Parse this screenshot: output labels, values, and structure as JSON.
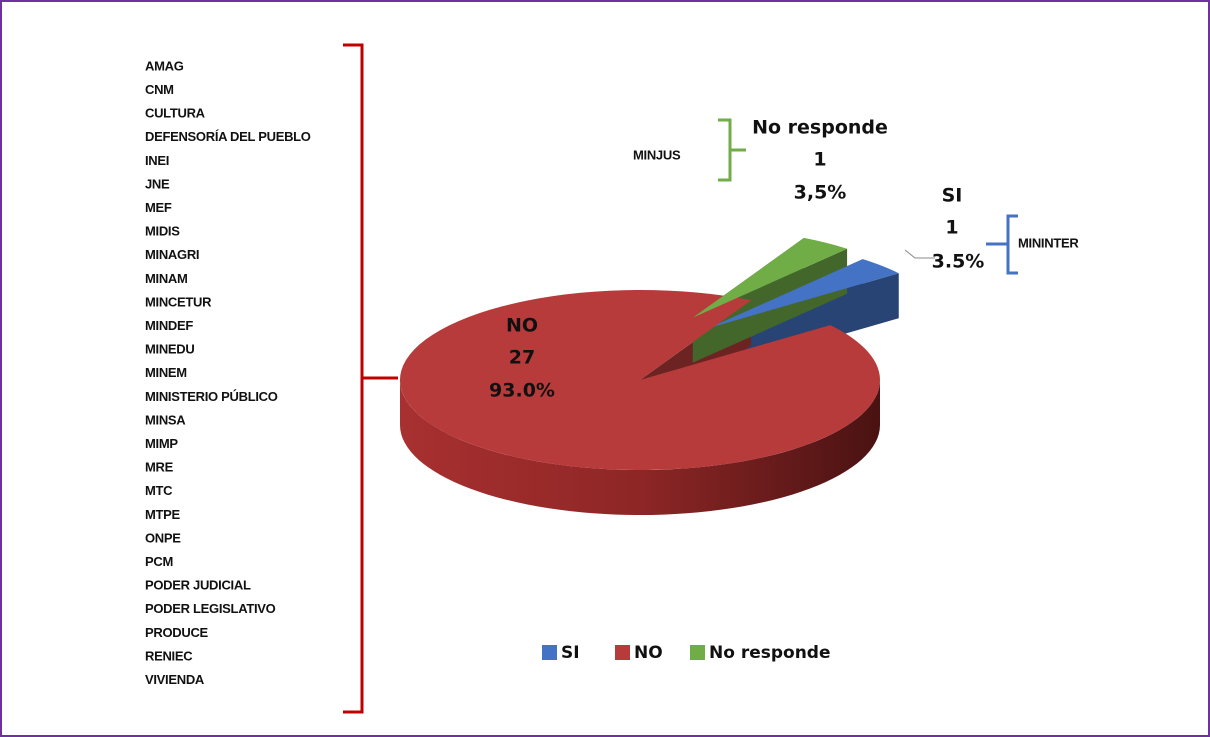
{
  "chart_data": {
    "type": "pie",
    "categories": [
      "SI",
      "NO",
      "No responde"
    ],
    "values": [
      1,
      27,
      1
    ],
    "percent_labels": [
      "3.5%",
      "93.0%",
      "3,5%"
    ],
    "colors": [
      "#4472c4",
      "#b83b3b",
      "#70ad47"
    ],
    "legend": "bottom",
    "annotations": [
      {
        "items": [
          "MININTER"
        ]
      },
      {
        "items": [
          "AMAG",
          "CNM",
          "CULTURA",
          "DEFENSORÍA DEL PUEBLO",
          "INEI",
          "JNE",
          "MEF",
          "MIDIS",
          "MINAGRI",
          "MINAM",
          "MINCETUR",
          "MINDEF",
          "MINEDU",
          "MINEM",
          "MINISTERIO PÚBLICO",
          "MINSA",
          "MIMP",
          "MRE",
          "MTC",
          "MTPE",
          "ONPE",
          "PCM",
          "PODER JUDICIAL",
          "PODER LEGISLATIVO",
          "PRODUCE",
          "RENIEC",
          "VIVIENDA"
        ]
      },
      {
        "items": [
          "MINJUS"
        ]
      }
    ]
  }
}
